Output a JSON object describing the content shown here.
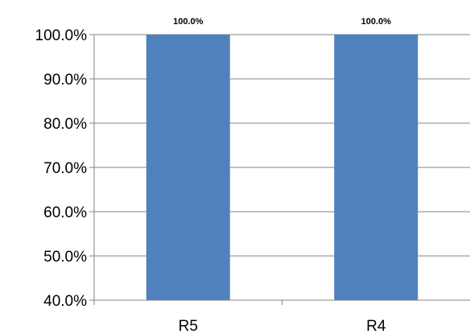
{
  "chart_data": {
    "type": "bar",
    "title": "",
    "categories": [
      "R5",
      "R4"
    ],
    "values": [
      100.0,
      100.0
    ],
    "value_labels": [
      "100.0%",
      "100.0%"
    ],
    "ylim": [
      40,
      100
    ],
    "yticks": [
      40,
      50,
      60,
      70,
      80,
      90,
      100
    ],
    "ytick_format": "percent_1dp",
    "xlabel": "",
    "ylabel": "",
    "grid": true,
    "legend": "none",
    "colors": {
      "bar": "#4f81bd",
      "grid": "#868686",
      "axis": "#868686"
    }
  }
}
